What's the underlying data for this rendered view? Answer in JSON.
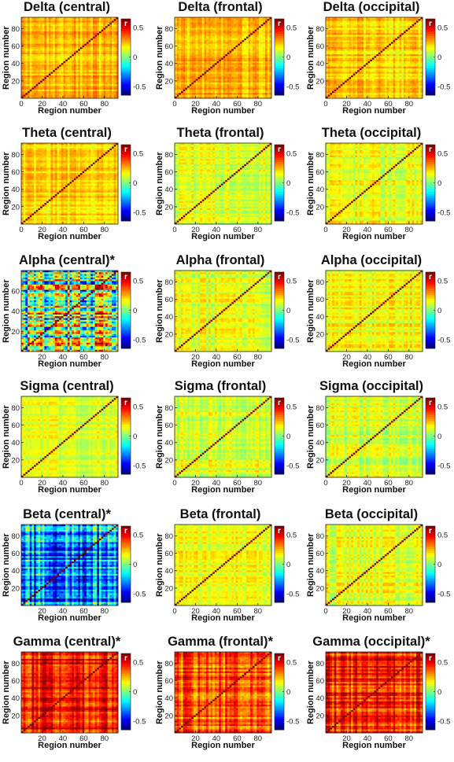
{
  "colorbar": {
    "label": "r",
    "ticks": [
      0.5,
      0,
      -0.5
    ],
    "tick_labels": [
      "0.5",
      "0",
      "-0.5"
    ],
    "range": [
      -0.65,
      0.65
    ],
    "colormap": "jet"
  },
  "chart_data": [
    {
      "type": "heatmap",
      "title": "Delta (central)",
      "xlabel": "Region number",
      "ylabel": "Region number",
      "xticks": [
        0,
        20,
        40,
        60,
        80
      ],
      "yticks": [
        20,
        40,
        60,
        80
      ],
      "xlim": [
        0,
        93
      ],
      "ylim": [
        0,
        93
      ],
      "clim": [
        -0.65,
        0.65
      ],
      "mean_r": 0.25,
      "spread": 0.07
    },
    {
      "type": "heatmap",
      "title": "Delta (frontal)",
      "xlabel": "Region number",
      "ylabel": "Region number",
      "xticks": [
        0,
        20,
        40,
        60,
        80
      ],
      "yticks": [
        20,
        40,
        60,
        80
      ],
      "xlim": [
        0,
        93
      ],
      "ylim": [
        0,
        93
      ],
      "clim": [
        -0.65,
        0.65
      ],
      "mean_r": 0.24,
      "spread": 0.07
    },
    {
      "type": "heatmap",
      "title": "Delta (occipital)",
      "xlabel": "Region number",
      "ylabel": "Region number",
      "xticks": [
        0,
        20,
        40,
        60,
        80
      ],
      "yticks": [
        20,
        40,
        60,
        80
      ],
      "xlim": [
        0,
        93
      ],
      "ylim": [
        0,
        93
      ],
      "clim": [
        -0.65,
        0.65
      ],
      "mean_r": 0.22,
      "spread": 0.07
    },
    {
      "type": "heatmap",
      "title": "Theta (central)",
      "xlabel": "Region number",
      "ylabel": "Region number",
      "xticks": [
        0,
        20,
        40,
        60,
        80
      ],
      "yticks": [
        20,
        40,
        60,
        80
      ],
      "xlim": [
        0,
        93
      ],
      "ylim": [
        0,
        93
      ],
      "clim": [
        -0.65,
        0.65
      ],
      "mean_r": 0.22,
      "spread": 0.07
    },
    {
      "type": "heatmap",
      "title": "Theta (frontal)",
      "xlabel": "Region number",
      "ylabel": "Region number",
      "xticks": [
        0,
        20,
        40,
        60,
        80
      ],
      "yticks": [
        20,
        40,
        60,
        80
      ],
      "xlim": [
        0,
        93
      ],
      "ylim": [
        0,
        93
      ],
      "clim": [
        -0.65,
        0.65
      ],
      "mean_r": 0.12,
      "spread": 0.07
    },
    {
      "type": "heatmap",
      "title": "Theta (occipital)",
      "xlabel": "Region number",
      "ylabel": "Region number",
      "xticks": [
        0,
        20,
        40,
        60,
        80
      ],
      "yticks": [
        20,
        40,
        60,
        80
      ],
      "xlim": [
        0,
        93
      ],
      "ylim": [
        0,
        93
      ],
      "clim": [
        -0.65,
        0.65
      ],
      "mean_r": 0.14,
      "spread": 0.07
    },
    {
      "type": "heatmap",
      "title": "Alpha (central)*",
      "xlabel": "Region number",
      "ylabel": "Region number",
      "xticks": [
        20,
        40,
        60,
        80
      ],
      "yticks": [
        20,
        40,
        60
      ],
      "xlim": [
        0,
        93
      ],
      "ylim": [
        0,
        80
      ],
      "clim": [
        -0.65,
        0.65
      ],
      "mean_r": -0.05,
      "spread": 0.35
    },
    {
      "type": "heatmap",
      "title": "Alpha (frontal)",
      "xlabel": "Region number",
      "ylabel": "Region number",
      "xticks": [
        20,
        40,
        60,
        80
      ],
      "yticks": [
        20,
        40,
        60,
        80
      ],
      "xlim": [
        0,
        93
      ],
      "ylim": [
        0,
        93
      ],
      "clim": [
        -0.65,
        0.65
      ],
      "mean_r": 0.12,
      "spread": 0.07
    },
    {
      "type": "heatmap",
      "title": "Alpha (occipital)",
      "xlabel": "Region number",
      "ylabel": "Region number",
      "xticks": [
        20,
        40,
        60,
        80
      ],
      "yticks": [
        20,
        40,
        60,
        80
      ],
      "xlim": [
        0,
        93
      ],
      "ylim": [
        0,
        93
      ],
      "clim": [
        -0.65,
        0.65
      ],
      "mean_r": 0.15,
      "spread": 0.07
    },
    {
      "type": "heatmap",
      "title": "Sigma (central)",
      "xlabel": "Region number",
      "ylabel": "Region number",
      "xticks": [
        0,
        20,
        40,
        60,
        80
      ],
      "yticks": [
        20,
        40,
        60,
        80
      ],
      "xlim": [
        0,
        93
      ],
      "ylim": [
        0,
        93
      ],
      "clim": [
        -0.65,
        0.65
      ],
      "mean_r": 0.12,
      "spread": 0.06
    },
    {
      "type": "heatmap",
      "title": "Sigma (frontal)",
      "xlabel": "Region number",
      "ylabel": "Region number",
      "xticks": [
        0,
        20,
        40,
        60,
        80
      ],
      "yticks": [
        20,
        40,
        60,
        80
      ],
      "xlim": [
        0,
        93
      ],
      "ylim": [
        0,
        93
      ],
      "clim": [
        -0.65,
        0.65
      ],
      "mean_r": 0.12,
      "spread": 0.07
    },
    {
      "type": "heatmap",
      "title": "Sigma (occipital)",
      "xlabel": "Region number",
      "ylabel": "Region number",
      "xticks": [
        0,
        20,
        40,
        60,
        80
      ],
      "yticks": [
        20,
        40,
        60,
        80
      ],
      "xlim": [
        0,
        93
      ],
      "ylim": [
        0,
        93
      ],
      "clim": [
        -0.65,
        0.65
      ],
      "mean_r": 0.11,
      "spread": 0.07
    },
    {
      "type": "heatmap",
      "title": "Beta (central)*",
      "xlabel": "Region number",
      "ylabel": "Region number",
      "xticks": [
        20,
        40,
        60,
        80
      ],
      "yticks": [
        20,
        40,
        60,
        80
      ],
      "xlim": [
        0,
        93
      ],
      "ylim": [
        0,
        93
      ],
      "clim": [
        -0.65,
        0.65
      ],
      "mean_r": -0.3,
      "spread": 0.22
    },
    {
      "type": "heatmap",
      "title": "Beta (frontal)",
      "xlabel": "Region number",
      "ylabel": "Region number",
      "xticks": [
        0,
        20,
        40,
        60,
        80
      ],
      "yticks": [
        20,
        40,
        60,
        80
      ],
      "xlim": [
        0,
        93
      ],
      "ylim": [
        0,
        93
      ],
      "clim": [
        -0.65,
        0.65
      ],
      "mean_r": 0.14,
      "spread": 0.06
    },
    {
      "type": "heatmap",
      "title": "Beta (occipital)",
      "xlabel": "Region number",
      "ylabel": "Region number",
      "xticks": [
        0,
        20,
        40,
        60,
        80
      ],
      "yticks": [
        20,
        40,
        60,
        80
      ],
      "xlim": [
        0,
        93
      ],
      "ylim": [
        0,
        93
      ],
      "clim": [
        -0.65,
        0.65
      ],
      "mean_r": 0.13,
      "spread": 0.07
    },
    {
      "type": "heatmap",
      "title": "Gamma (central)*",
      "xlabel": "Region number",
      "ylabel": "Region number",
      "xticks": [
        20,
        40,
        60,
        80
      ],
      "yticks": [
        20,
        40,
        60,
        80
      ],
      "xlim": [
        0,
        93
      ],
      "ylim": [
        0,
        93
      ],
      "clim": [
        -0.65,
        0.65
      ],
      "mean_r": 0.48,
      "spread": 0.12
    },
    {
      "type": "heatmap",
      "title": "Gamma (frontal)*",
      "xlabel": "Region number",
      "ylabel": "Region number",
      "xticks": [
        20,
        40,
        60,
        80
      ],
      "yticks": [
        20,
        40,
        60,
        80
      ],
      "xlim": [
        0,
        93
      ],
      "ylim": [
        0,
        93
      ],
      "clim": [
        -0.65,
        0.65
      ],
      "mean_r": 0.4,
      "spread": 0.12
    },
    {
      "type": "heatmap",
      "title": "Gamma (occipital)*",
      "xlabel": "Region number",
      "ylabel": "Region number",
      "xticks": [
        20,
        40,
        60,
        80
      ],
      "yticks": [
        20,
        40,
        60,
        80
      ],
      "xlim": [
        0,
        93
      ],
      "ylim": [
        0,
        93
      ],
      "clim": [
        -0.65,
        0.65
      ],
      "mean_r": 0.46,
      "spread": 0.12
    }
  ]
}
